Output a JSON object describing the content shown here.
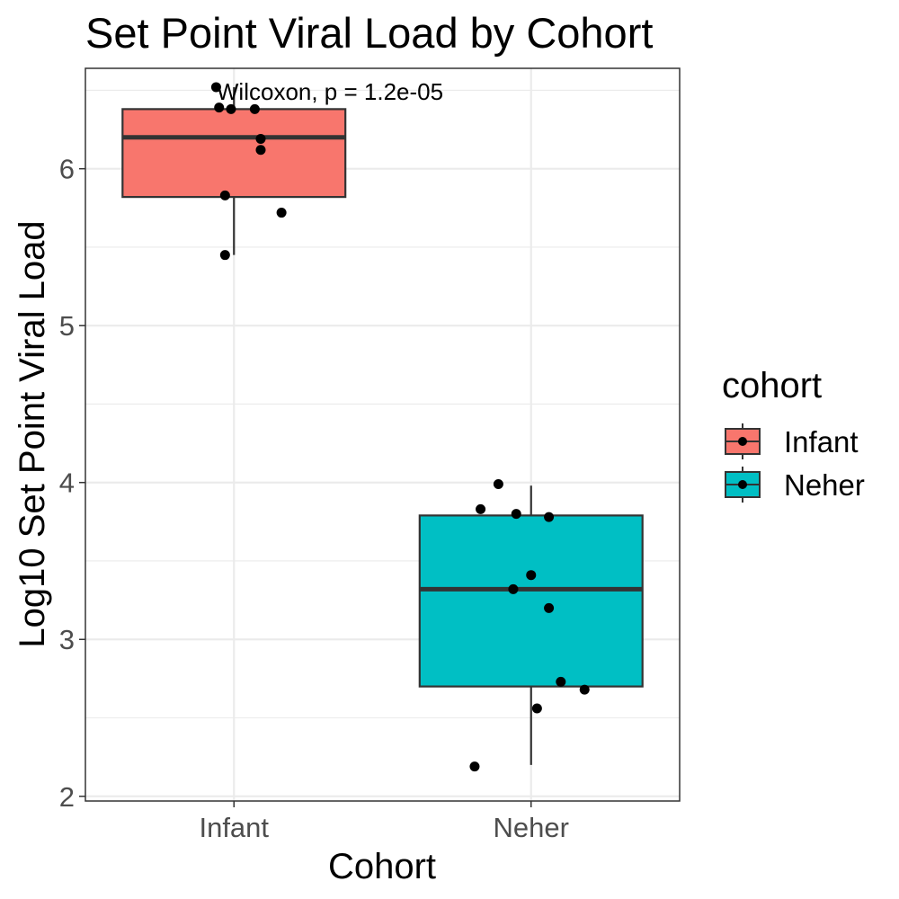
{
  "chart_data": {
    "type": "boxplot",
    "title": "Set Point Viral Load by Cohort",
    "xlabel": "Cohort",
    "ylabel": "Log10 Set Point Viral Load",
    "categories": [
      "Infant",
      "Neher"
    ],
    "yticks": [
      "2",
      "3",
      "4",
      "5",
      "6"
    ],
    "ylim": [
      1.97,
      6.64
    ],
    "grid": true,
    "annotation": "Wilcoxon, p = 1.2e-05",
    "legend": {
      "title": "cohort",
      "placement": "right",
      "entries": [
        "Infant",
        "Neher"
      ]
    },
    "series": [
      {
        "name": "Infant",
        "color": "#F8766D",
        "box": {
          "min": 5.45,
          "q1": 5.82,
          "median": 6.2,
          "q3": 6.38,
          "max": 6.52
        },
        "points": [
          {
            "dx": -0.06,
            "y": 6.52
          },
          {
            "dx": -0.05,
            "y": 6.39
          },
          {
            "dx": -0.01,
            "y": 6.38
          },
          {
            "dx": 0.07,
            "y": 6.38
          },
          {
            "dx": 0.09,
            "y": 6.19
          },
          {
            "dx": 0.09,
            "y": 6.12
          },
          {
            "dx": -0.03,
            "y": 5.83
          },
          {
            "dx": 0.16,
            "y": 5.72
          },
          {
            "dx": -0.03,
            "y": 5.45
          }
        ]
      },
      {
        "name": "Neher",
        "color": "#00BFC4",
        "box": {
          "min": 2.2,
          "q1": 2.7,
          "median": 3.32,
          "q3": 3.79,
          "max": 3.98
        },
        "points": [
          {
            "dx": -0.11,
            "y": 3.99
          },
          {
            "dx": -0.17,
            "y": 3.83
          },
          {
            "dx": -0.05,
            "y": 3.8
          },
          {
            "dx": 0.06,
            "y": 3.78
          },
          {
            "dx": 0.0,
            "y": 3.41
          },
          {
            "dx": -0.06,
            "y": 3.32
          },
          {
            "dx": 0.06,
            "y": 3.2
          },
          {
            "dx": 0.1,
            "y": 2.73
          },
          {
            "dx": 0.18,
            "y": 2.68
          },
          {
            "dx": 0.02,
            "y": 2.56
          },
          {
            "dx": -0.19,
            "y": 2.19
          }
        ]
      }
    ]
  }
}
